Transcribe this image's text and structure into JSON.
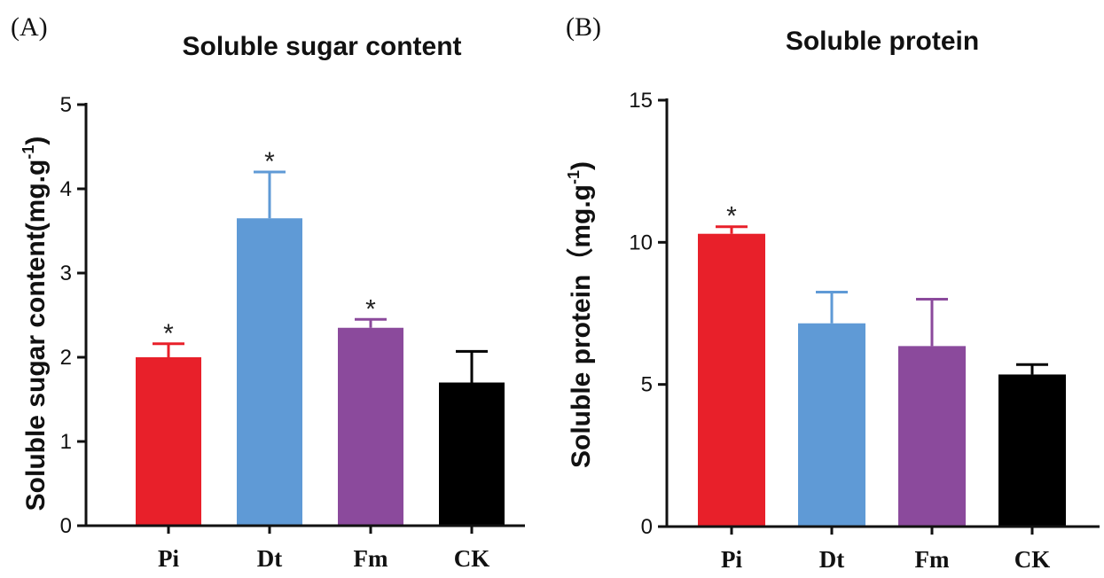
{
  "chart_data": [
    {
      "type": "bar",
      "panel": "(A)",
      "title": "Soluble sugar content",
      "ylabel": "Soluble sugar content(mg.g",
      "ylabel_superscript": "-1",
      "ylabel_suffix": ")",
      "categories": [
        "Pi",
        "Dt",
        "Fm",
        "CK"
      ],
      "values": [
        2.0,
        3.65,
        2.35,
        1.7
      ],
      "errors": [
        0.16,
        0.55,
        0.1,
        0.37
      ],
      "significance": [
        "*",
        "*",
        "*",
        ""
      ],
      "colors": [
        "#e8202a",
        "#5f9ad6",
        "#8b4a9c",
        "#000000"
      ],
      "ylim": [
        0,
        5
      ],
      "yticks": [
        "0",
        "1",
        "2",
        "3",
        "4",
        "5"
      ]
    },
    {
      "type": "bar",
      "panel": "(B)",
      "title": "Soluble protein",
      "ylabel": "Soluble protein（mg.g",
      "ylabel_superscript": "-1",
      "ylabel_suffix": ")",
      "categories": [
        "Pi",
        "Dt",
        "Fm",
        "CK"
      ],
      "values": [
        10.3,
        7.15,
        6.35,
        5.35
      ],
      "errors": [
        0.25,
        1.1,
        1.65,
        0.35
      ],
      "significance": [
        "*",
        "",
        "",
        ""
      ],
      "colors": [
        "#e8202a",
        "#5f9ad6",
        "#8b4a9c",
        "#000000"
      ],
      "ylim": [
        0,
        15
      ],
      "yticks": [
        "0",
        "5",
        "10",
        "15"
      ]
    }
  ]
}
